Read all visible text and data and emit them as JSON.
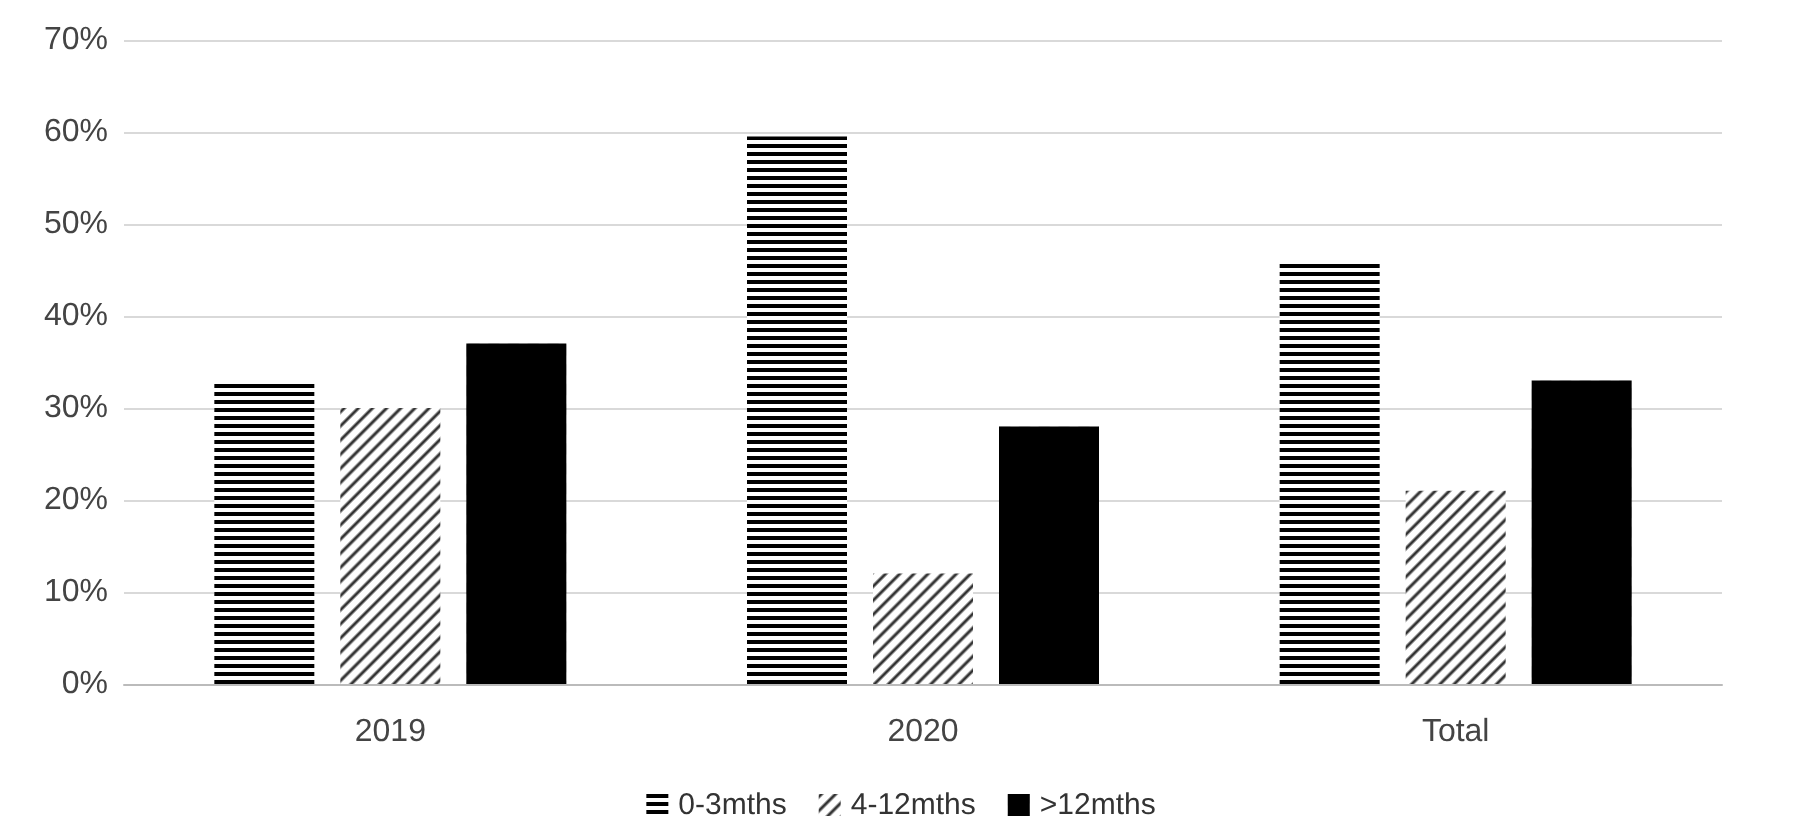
{
  "chart_data": {
    "type": "bar",
    "categories": [
      "2019",
      "2020",
      "Total"
    ],
    "series": [
      {
        "name": "0-3mths",
        "color": "#000000",
        "values": [
          33,
          59.5,
          46
        ]
      },
      {
        "name": "4-12mths",
        "color": "#000000",
        "values": [
          30,
          12,
          21
        ]
      },
      {
        "name": ">12mths",
        "color": "#000000",
        "values": [
          37,
          28,
          33
        ]
      }
    ],
    "ylim": [
      0,
      70
    ],
    "yticks": [
      {
        "value": 0,
        "label": "0%"
      },
      {
        "value": 10,
        "label": "10%"
      },
      {
        "value": 20,
        "label": "20%"
      },
      {
        "value": 30,
        "label": "30%"
      },
      {
        "value": 40,
        "label": "40%"
      },
      {
        "value": 50,
        "label": "50%"
      },
      {
        "value": 60,
        "label": "60%"
      },
      {
        "value": 70,
        "label": "70%"
      }
    ],
    "grid": "y",
    "legend": "bottom"
  }
}
